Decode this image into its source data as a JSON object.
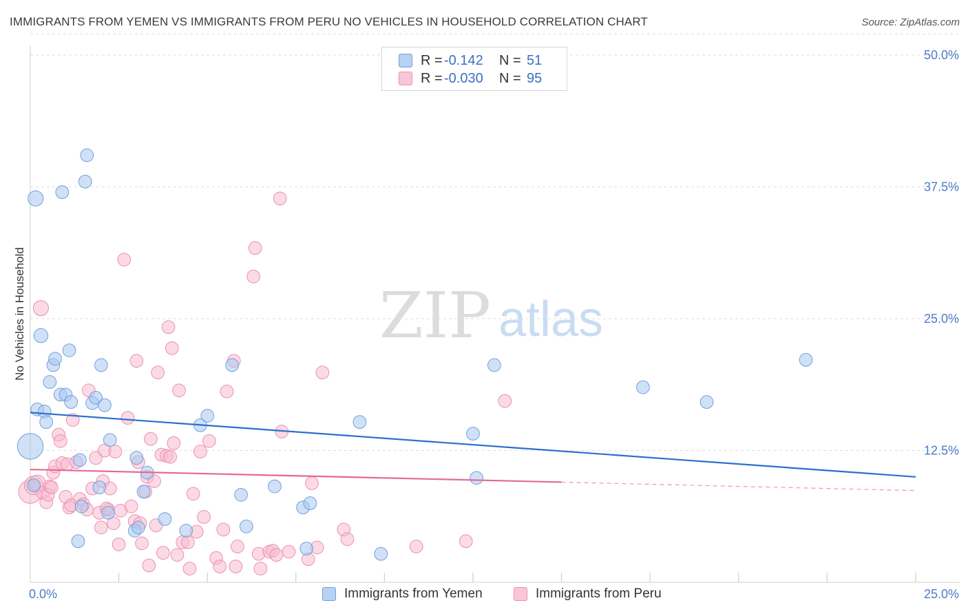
{
  "header": {
    "title": "IMMIGRANTS FROM YEMEN VS IMMIGRANTS FROM PERU NO VEHICLES IN HOUSEHOLD CORRELATION CHART",
    "source": "Source: ZipAtlas.com"
  },
  "watermark": {
    "zip": "ZIP",
    "atlas": "atlas"
  },
  "legend": {
    "yemen": {
      "r_label": "R =",
      "r_value": "-0.142",
      "n_label": "N =",
      "n_value": "51"
    },
    "peru": {
      "r_label": "R =",
      "r_value": "-0.030",
      "n_label": "N =",
      "n_value": "95"
    }
  },
  "bottom_legend": {
    "yemen": "Immigrants from Yemen",
    "peru": "Immigrants from Peru"
  },
  "colors": {
    "yemen_fill": "#a9c8f0",
    "yemen_stroke": "#6e9fdc",
    "yemen_line": "#2b6fce",
    "peru_fill": "#f7bcd0",
    "peru_stroke": "#ec8fae",
    "peru_line": "#e56894",
    "tick_text": "#4a7cc9"
  },
  "chart_data": {
    "type": "scatter",
    "title": "IMMIGRANTS FROM YEMEN VS IMMIGRANTS FROM PERU NO VEHICLES IN HOUSEHOLD CORRELATION CHART",
    "xlabel": "",
    "ylabel": "No Vehicles in Household",
    "xlim": [
      0,
      25
    ],
    "ylim": [
      0,
      50
    ],
    "x_tick_labels": [
      "0.0%",
      "25.0%"
    ],
    "y_ticks": [
      12.5,
      25.0,
      37.5,
      50.0
    ],
    "y_tick_labels": [
      "12.5%",
      "25.0%",
      "37.5%",
      "50.0%"
    ],
    "series": [
      {
        "name": "Immigrants from Yemen",
        "trend": {
          "x": [
            0,
            25
          ],
          "y": [
            16.1,
            10.0
          ],
          "dashed_from": null
        },
        "points": [
          {
            "x": 0.0,
            "y": 12.9,
            "s": 2.2
          },
          {
            "x": 0.15,
            "y": 36.4,
            "s": 1.3
          },
          {
            "x": 0.3,
            "y": 23.4,
            "s": 1.2
          },
          {
            "x": 0.2,
            "y": 16.4,
            "s": 1.1
          },
          {
            "x": 0.4,
            "y": 16.2,
            "s": 1.1
          },
          {
            "x": 0.45,
            "y": 15.2,
            "s": 1.1
          },
          {
            "x": 0.55,
            "y": 19.0,
            "s": 1.1
          },
          {
            "x": 0.65,
            "y": 20.6,
            "s": 1.1
          },
          {
            "x": 0.7,
            "y": 21.2,
            "s": 1.1
          },
          {
            "x": 0.85,
            "y": 17.8,
            "s": 1.1
          },
          {
            "x": 0.9,
            "y": 37.0,
            "s": 1.1
          },
          {
            "x": 1.0,
            "y": 17.8,
            "s": 1.1
          },
          {
            "x": 1.1,
            "y": 22.0,
            "s": 1.1
          },
          {
            "x": 1.15,
            "y": 17.1,
            "s": 1.1
          },
          {
            "x": 1.35,
            "y": 3.9,
            "s": 1.1
          },
          {
            "x": 1.4,
            "y": 11.6,
            "s": 1.1
          },
          {
            "x": 1.45,
            "y": 7.2,
            "s": 1.1
          },
          {
            "x": 1.55,
            "y": 38.0,
            "s": 1.1
          },
          {
            "x": 1.6,
            "y": 40.5,
            "s": 1.1
          },
          {
            "x": 1.75,
            "y": 17.0,
            "s": 1.1
          },
          {
            "x": 1.85,
            "y": 17.5,
            "s": 1.1
          },
          {
            "x": 1.95,
            "y": 9.0,
            "s": 1.1
          },
          {
            "x": 2.0,
            "y": 20.6,
            "s": 1.1
          },
          {
            "x": 2.1,
            "y": 16.8,
            "s": 1.1
          },
          {
            "x": 2.2,
            "y": 6.6,
            "s": 1.1
          },
          {
            "x": 2.25,
            "y": 13.5,
            "s": 1.1
          },
          {
            "x": 2.95,
            "y": 4.9,
            "s": 1.1
          },
          {
            "x": 3.0,
            "y": 11.8,
            "s": 1.1
          },
          {
            "x": 3.05,
            "y": 5.2,
            "s": 1.1
          },
          {
            "x": 3.2,
            "y": 8.6,
            "s": 1.1
          },
          {
            "x": 3.3,
            "y": 10.4,
            "s": 1.1
          },
          {
            "x": 3.8,
            "y": 6.0,
            "s": 1.1
          },
          {
            "x": 4.4,
            "y": 4.9,
            "s": 1.1
          },
          {
            "x": 4.8,
            "y": 14.9,
            "s": 1.1
          },
          {
            "x": 5.0,
            "y": 15.8,
            "s": 1.1
          },
          {
            "x": 5.7,
            "y": 20.6,
            "s": 1.1
          },
          {
            "x": 5.95,
            "y": 8.3,
            "s": 1.1
          },
          {
            "x": 6.1,
            "y": 5.3,
            "s": 1.1
          },
          {
            "x": 6.9,
            "y": 9.1,
            "s": 1.1
          },
          {
            "x": 7.7,
            "y": 7.1,
            "s": 1.1
          },
          {
            "x": 7.8,
            "y": 3.2,
            "s": 1.1
          },
          {
            "x": 7.9,
            "y": 7.5,
            "s": 1.1
          },
          {
            "x": 9.3,
            "y": 15.2,
            "s": 1.1
          },
          {
            "x": 9.9,
            "y": 2.7,
            "s": 1.1
          },
          {
            "x": 12.5,
            "y": 14.1,
            "s": 1.1
          },
          {
            "x": 12.6,
            "y": 9.9,
            "s": 1.1
          },
          {
            "x": 13.1,
            "y": 20.6,
            "s": 1.1
          },
          {
            "x": 17.3,
            "y": 18.5,
            "s": 1.1
          },
          {
            "x": 19.1,
            "y": 17.1,
            "s": 1.1
          },
          {
            "x": 21.9,
            "y": 21.1,
            "s": 1.1
          },
          {
            "x": 0.1,
            "y": 9.2,
            "s": 1.1
          }
        ]
      },
      {
        "name": "Immigrants from Peru",
        "trend": {
          "x": [
            0,
            25
          ],
          "y": [
            10.7,
            8.7
          ],
          "dashed_from": 15.0
        },
        "points": [
          {
            "x": 0.0,
            "y": 8.6,
            "s": 2.0
          },
          {
            "x": 0.1,
            "y": 9.2,
            "s": 1.6
          },
          {
            "x": 0.2,
            "y": 9.4,
            "s": 1.4
          },
          {
            "x": 0.3,
            "y": 26.0,
            "s": 1.3
          },
          {
            "x": 0.35,
            "y": 8.5,
            "s": 1.1
          },
          {
            "x": 0.45,
            "y": 7.6,
            "s": 1.1
          },
          {
            "x": 0.55,
            "y": 9.1,
            "s": 1.1
          },
          {
            "x": 0.65,
            "y": 10.4,
            "s": 1.1
          },
          {
            "x": 0.7,
            "y": 11.0,
            "s": 1.1
          },
          {
            "x": 0.8,
            "y": 14.0,
            "s": 1.1
          },
          {
            "x": 0.85,
            "y": 13.4,
            "s": 1.1
          },
          {
            "x": 0.9,
            "y": 11.3,
            "s": 1.1
          },
          {
            "x": 1.0,
            "y": 8.1,
            "s": 1.1
          },
          {
            "x": 1.05,
            "y": 11.2,
            "s": 1.1
          },
          {
            "x": 1.1,
            "y": 7.1,
            "s": 1.1
          },
          {
            "x": 1.2,
            "y": 15.4,
            "s": 1.1
          },
          {
            "x": 1.3,
            "y": 11.4,
            "s": 1.1
          },
          {
            "x": 1.4,
            "y": 7.9,
            "s": 1.1
          },
          {
            "x": 1.5,
            "y": 7.4,
            "s": 1.1
          },
          {
            "x": 1.6,
            "y": 6.9,
            "s": 1.1
          },
          {
            "x": 1.65,
            "y": 18.2,
            "s": 1.1
          },
          {
            "x": 1.75,
            "y": 8.9,
            "s": 1.1
          },
          {
            "x": 1.85,
            "y": 11.8,
            "s": 1.1
          },
          {
            "x": 1.95,
            "y": 6.6,
            "s": 1.1
          },
          {
            "x": 2.0,
            "y": 5.2,
            "s": 1.1
          },
          {
            "x": 2.05,
            "y": 9.6,
            "s": 1.1
          },
          {
            "x": 2.1,
            "y": 12.5,
            "s": 1.1
          },
          {
            "x": 2.2,
            "y": 6.9,
            "s": 1.1
          },
          {
            "x": 2.25,
            "y": 8.9,
            "s": 1.1
          },
          {
            "x": 2.35,
            "y": 5.6,
            "s": 1.1
          },
          {
            "x": 2.4,
            "y": 12.4,
            "s": 1.1
          },
          {
            "x": 2.5,
            "y": 3.6,
            "s": 1.1
          },
          {
            "x": 2.55,
            "y": 6.8,
            "s": 1.1
          },
          {
            "x": 2.65,
            "y": 30.6,
            "s": 1.1
          },
          {
            "x": 2.75,
            "y": 15.6,
            "s": 1.1
          },
          {
            "x": 2.85,
            "y": 7.2,
            "s": 1.1
          },
          {
            "x": 2.95,
            "y": 5.8,
            "s": 1.1
          },
          {
            "x": 3.0,
            "y": 21.0,
            "s": 1.1
          },
          {
            "x": 3.05,
            "y": 11.4,
            "s": 1.1
          },
          {
            "x": 3.15,
            "y": 3.7,
            "s": 1.1
          },
          {
            "x": 3.25,
            "y": 8.6,
            "s": 1.1
          },
          {
            "x": 3.3,
            "y": 10.0,
            "s": 1.1
          },
          {
            "x": 3.35,
            "y": 1.6,
            "s": 1.1
          },
          {
            "x": 3.4,
            "y": 13.6,
            "s": 1.1
          },
          {
            "x": 3.5,
            "y": 9.6,
            "s": 1.1
          },
          {
            "x": 3.55,
            "y": 5.4,
            "s": 1.1
          },
          {
            "x": 3.6,
            "y": 19.9,
            "s": 1.1
          },
          {
            "x": 3.7,
            "y": 12.1,
            "s": 1.1
          },
          {
            "x": 3.75,
            "y": 2.8,
            "s": 1.1
          },
          {
            "x": 3.85,
            "y": 12.0,
            "s": 1.1
          },
          {
            "x": 3.9,
            "y": 24.2,
            "s": 1.1
          },
          {
            "x": 3.95,
            "y": 11.9,
            "s": 1.1
          },
          {
            "x": 4.0,
            "y": 22.2,
            "s": 1.1
          },
          {
            "x": 4.05,
            "y": 13.2,
            "s": 1.1
          },
          {
            "x": 4.15,
            "y": 2.6,
            "s": 1.1
          },
          {
            "x": 4.2,
            "y": 18.2,
            "s": 1.1
          },
          {
            "x": 4.3,
            "y": 3.8,
            "s": 1.1
          },
          {
            "x": 4.45,
            "y": 3.8,
            "s": 1.1
          },
          {
            "x": 4.5,
            "y": 1.3,
            "s": 1.1
          },
          {
            "x": 4.6,
            "y": 8.4,
            "s": 1.1
          },
          {
            "x": 4.7,
            "y": 4.8,
            "s": 1.1
          },
          {
            "x": 4.8,
            "y": 12.4,
            "s": 1.1
          },
          {
            "x": 4.9,
            "y": 6.2,
            "s": 1.1
          },
          {
            "x": 5.05,
            "y": 13.4,
            "s": 1.1
          },
          {
            "x": 5.25,
            "y": 2.3,
            "s": 1.1
          },
          {
            "x": 5.35,
            "y": 1.5,
            "s": 1.1
          },
          {
            "x": 5.45,
            "y": 5.0,
            "s": 1.1
          },
          {
            "x": 5.55,
            "y": 18.1,
            "s": 1.1
          },
          {
            "x": 5.75,
            "y": 21.0,
            "s": 1.1
          },
          {
            "x": 5.8,
            "y": 1.5,
            "s": 1.1
          },
          {
            "x": 5.85,
            "y": 3.4,
            "s": 1.1
          },
          {
            "x": 6.3,
            "y": 29.0,
            "s": 1.1
          },
          {
            "x": 6.35,
            "y": 31.7,
            "s": 1.1
          },
          {
            "x": 6.45,
            "y": 2.7,
            "s": 1.1
          },
          {
            "x": 6.5,
            "y": 1.3,
            "s": 1.1
          },
          {
            "x": 6.75,
            "y": 2.9,
            "s": 1.1
          },
          {
            "x": 6.85,
            "y": 3.0,
            "s": 1.1
          },
          {
            "x": 6.95,
            "y": 2.6,
            "s": 1.1
          },
          {
            "x": 7.05,
            "y": 36.4,
            "s": 1.1
          },
          {
            "x": 7.1,
            "y": 14.3,
            "s": 1.1
          },
          {
            "x": 7.3,
            "y": 2.9,
            "s": 1.1
          },
          {
            "x": 7.85,
            "y": 2.2,
            "s": 1.1
          },
          {
            "x": 7.95,
            "y": 9.4,
            "s": 1.1
          },
          {
            "x": 8.1,
            "y": 3.3,
            "s": 1.1
          },
          {
            "x": 8.25,
            "y": 19.9,
            "s": 1.1
          },
          {
            "x": 8.85,
            "y": 5.0,
            "s": 1.1
          },
          {
            "x": 8.95,
            "y": 4.1,
            "s": 1.1
          },
          {
            "x": 10.9,
            "y": 3.4,
            "s": 1.1
          },
          {
            "x": 12.3,
            "y": 3.9,
            "s": 1.1
          },
          {
            "x": 13.4,
            "y": 17.2,
            "s": 1.1
          },
          {
            "x": 0.5,
            "y": 8.3,
            "s": 1.1
          },
          {
            "x": 0.6,
            "y": 9.0,
            "s": 1.1
          },
          {
            "x": 1.15,
            "y": 7.3,
            "s": 1.1
          },
          {
            "x": 2.15,
            "y": 7.0,
            "s": 1.1
          },
          {
            "x": 3.1,
            "y": 5.6,
            "s": 1.1
          }
        ]
      }
    ]
  }
}
